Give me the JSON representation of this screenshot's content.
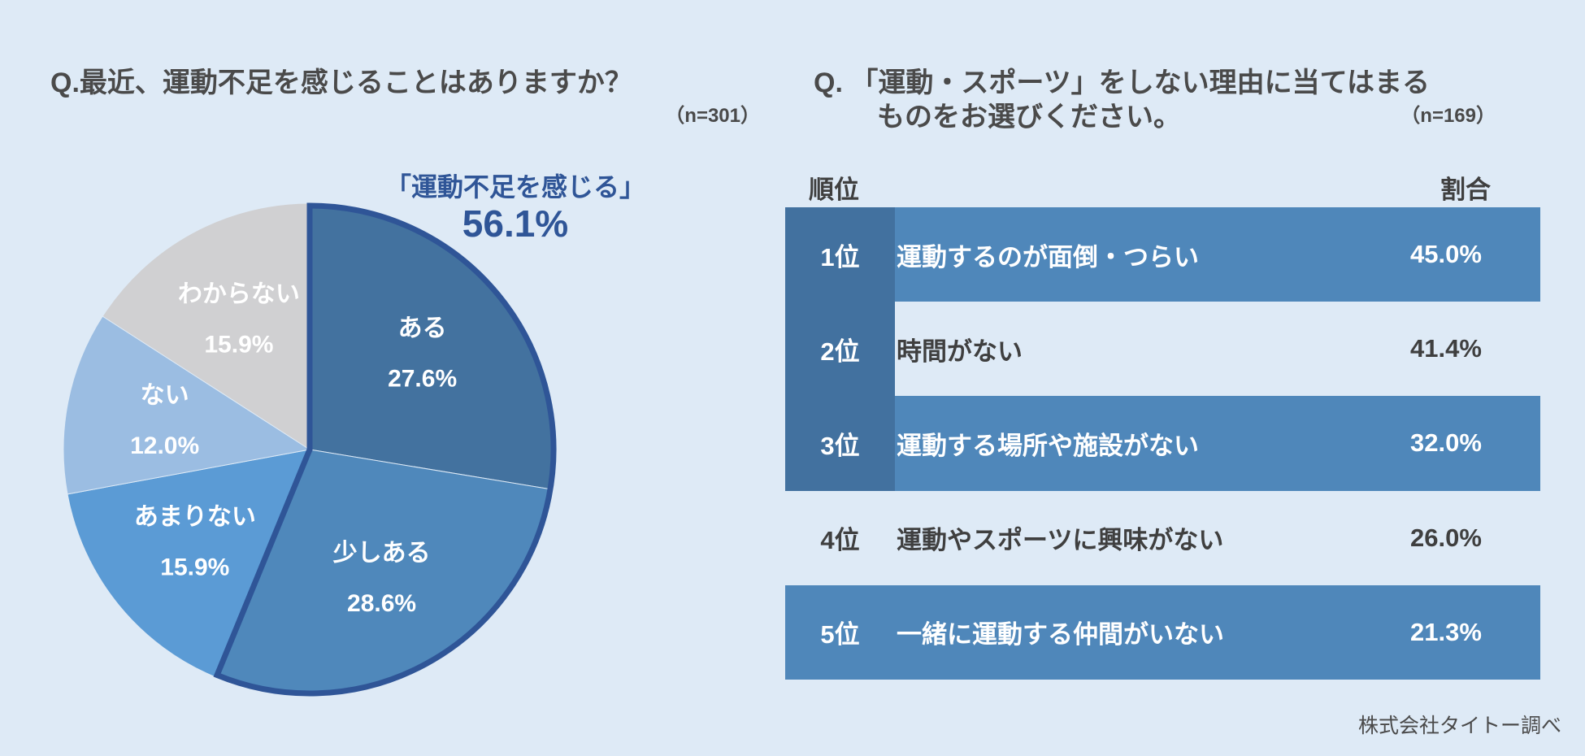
{
  "left": {
    "title": "Q.最近、運動不足を感じることはありますか？",
    "n": "（n=301）",
    "callout_label": "「運動不足を感じる」",
    "callout_value": "56.1%"
  },
  "right": {
    "title_line1": "Q. 「運動・スポーツ」をしない理由に当てはまる",
    "title_line2": "ものをお選びください。",
    "n": "（n=169）",
    "header_rank": "順位",
    "header_ratio": "割合",
    "rows": [
      {
        "rank": "1位",
        "label": "運動するのが面倒・つらい",
        "value": "45.0%"
      },
      {
        "rank": "2位",
        "label": "時間がない",
        "value": "41.4%"
      },
      {
        "rank": "3位",
        "label": "運動する場所や施設がない",
        "value": "32.0%"
      },
      {
        "rank": "4位",
        "label": "運動やスポーツに興味がない",
        "value": "26.0%"
      },
      {
        "rank": "5位",
        "label": "一緒に運動する仲間がいない",
        "value": "21.3%"
      }
    ]
  },
  "footer": "株式会社タイトー調べ",
  "chart_data": {
    "type": "pie",
    "title": "Q.最近、運動不足を感じることはありますか？",
    "start": "top-clockwise",
    "slices": [
      {
        "label": "ある",
        "value": 27.6,
        "display": "27.6%",
        "color": "#43729f"
      },
      {
        "label": "少しある",
        "value": 28.6,
        "display": "28.6%",
        "color": "#4f88bb"
      },
      {
        "label": "あまりない",
        "value": 15.9,
        "display": "15.9%",
        "color": "#5b9bd5"
      },
      {
        "label": "ない",
        "value": 12.0,
        "display": "12.0%",
        "color": "#9bbde2"
      },
      {
        "label": "わからない",
        "value": 15.9,
        "display": "15.9%",
        "color": "#d0d0d2"
      }
    ],
    "highlight": {
      "slices": [
        "ある",
        "少しある"
      ],
      "label": "「運動不足を感じる」",
      "value": "56.1%",
      "color": "#2f5597"
    }
  }
}
